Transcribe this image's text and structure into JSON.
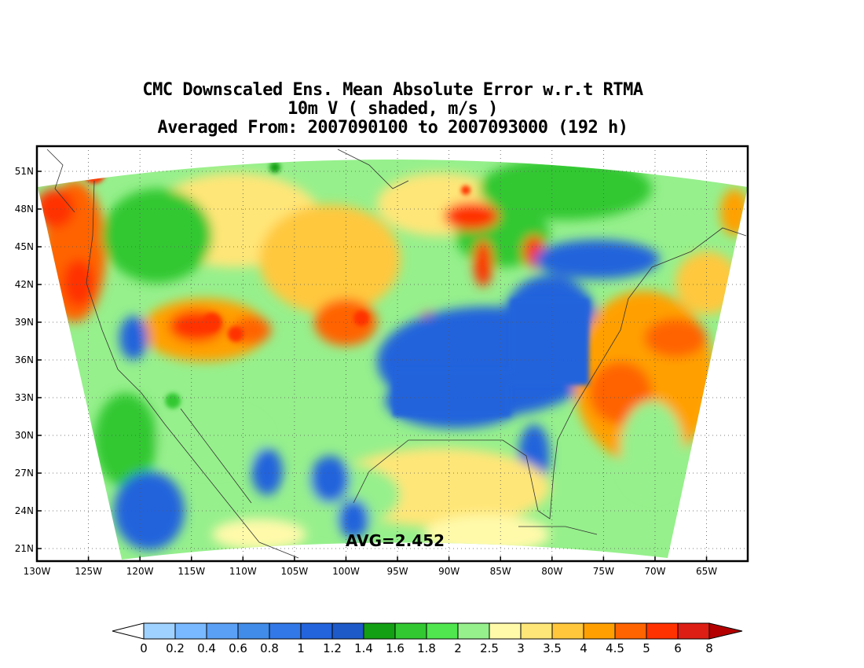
{
  "title": {
    "line1": "CMC Downscaled Ens. Mean Absolute Error w.r.t RTMA",
    "line2": "10m V ( shaded, m/s )",
    "line3": "Averaged From: 2007090100 to 2007093000 (192 h)"
  },
  "map": {
    "average_label": "AVG=2.452",
    "lat_labels": [
      "51N",
      "48N",
      "45N",
      "42N",
      "39N",
      "36N",
      "33N",
      "30N",
      "27N",
      "24N",
      "21N"
    ],
    "lon_labels": [
      "130W",
      "125W",
      "120W",
      "115W",
      "110W",
      "105W",
      "100W",
      "95W",
      "90W",
      "85W",
      "80W",
      "75W",
      "70W",
      "65W"
    ],
    "lon_range": [
      -130,
      -61
    ],
    "lat_range": [
      20,
      53
    ],
    "grid": true,
    "colors": {
      "blue": "#2e6fdc",
      "green": "#20aa20",
      "light_green": "#8ee68e",
      "yellow": "#fde891",
      "orange": "#fdab3a",
      "red": "#e8321e"
    }
  },
  "colorbar": {
    "labels": [
      "0",
      "0.2",
      "0.4",
      "0.6",
      "0.8",
      "1",
      "1.2",
      "1.4",
      "1.6",
      "1.8",
      "2",
      "2.5",
      "3",
      "3.5",
      "4",
      "4.5",
      "5",
      "6",
      "8"
    ],
    "colors": [
      "#a0d2ff",
      "#78b9ff",
      "#5aa0f5",
      "#418ce8",
      "#3278e6",
      "#2364dc",
      "#1e5ac8",
      "#14a014",
      "#32c832",
      "#50e650",
      "#96f08c",
      "#fffaaa",
      "#ffe678",
      "#ffc83c",
      "#ffa000",
      "#ff6400",
      "#ff3200",
      "#dc1e14",
      "#b40000"
    ]
  }
}
